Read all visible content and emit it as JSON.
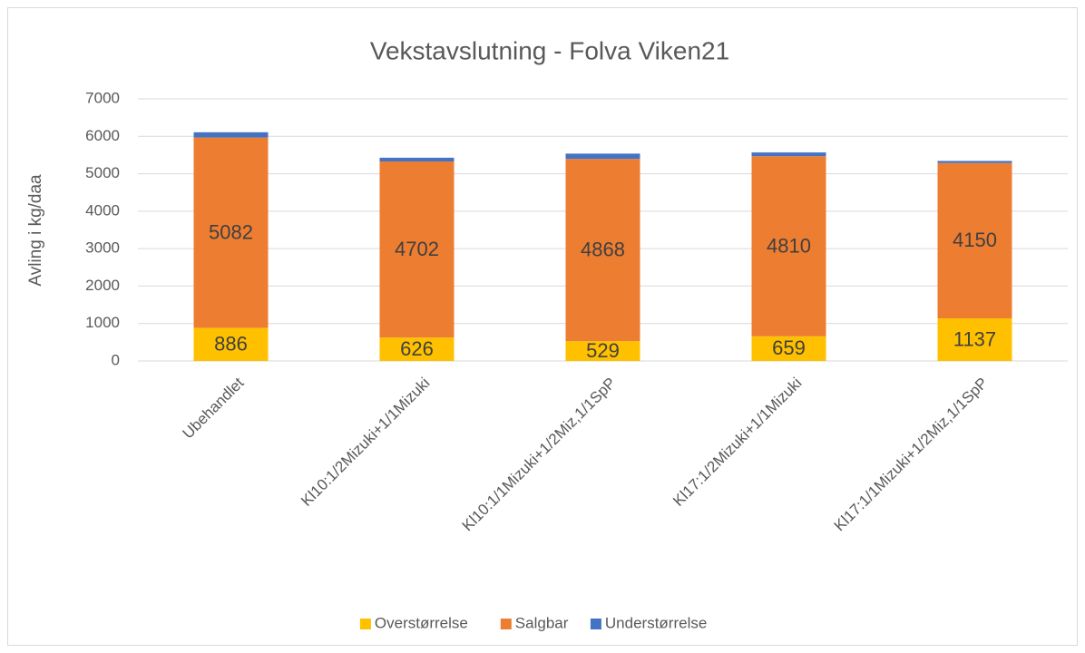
{
  "chart_data": {
    "type": "stacked_bar",
    "title": "Vekstavslutning - Folva Viken21",
    "y_label": "Avling i kg/daa",
    "categories": [
      "Ubehandlet",
      "Kl10:1/2Mizuki+1/1Mizuki",
      "Kl10:1/1Mizuki+1/2Miz,1/1SpP",
      "Kl17:1/2Mizuki+1/1Mizuki",
      "Kl17:1/1Mizuki+1/2Miz,1/1SpP"
    ],
    "series": [
      {
        "name": "Overstørrelse",
        "color": "#ffc000",
        "values": [
          886,
          626,
          529,
          659,
          1137
        ],
        "labels": true
      },
      {
        "name": "Salgbar",
        "color": "#ed7d31",
        "values": [
          5082,
          4702,
          4868,
          4810,
          4150
        ],
        "labels": true
      },
      {
        "name": "Understørrelse",
        "color": "#4472c4",
        "values": [
          140,
          100,
          140,
          100,
          55
        ],
        "labels": false
      }
    ],
    "ylim": [
      0,
      7000
    ],
    "yticks": [
      0,
      1000,
      2000,
      3000,
      4000,
      5000,
      6000,
      7000
    ],
    "grid": true,
    "legend": "bottom"
  }
}
